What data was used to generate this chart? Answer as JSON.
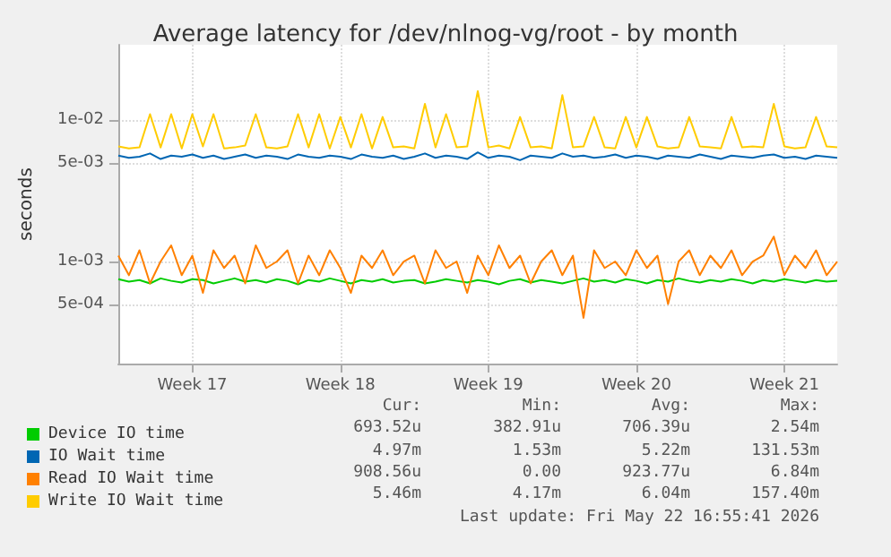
{
  "chart_data": {
    "type": "line",
    "title": "Average latency for /dev/nlnog-vg/root - by month",
    "ylabel": "seconds",
    "log": "y",
    "grid": true,
    "legend": "bottom left",
    "xlim": [
      "2026-04-19T00:00",
      "2026-05-23T00:00"
    ],
    "xticks": [
      {
        "value": "2026-04-22T12:00",
        "label": "Week 17"
      },
      {
        "value": "2026-04-29T12:00",
        "label": "Week 18"
      },
      {
        "value": "2026-05-06T12:00",
        "label": "Week 19"
      },
      {
        "value": "2026-05-13T12:00",
        "label": "Week 20"
      },
      {
        "value": "2026-05-20T12:00",
        "label": "Week 21"
      }
    ],
    "ylim": [
      0.00019,
      0.034
    ],
    "yticks": [
      {
        "value": 0.0005,
        "label": "5e-04"
      },
      {
        "value": 0.001,
        "label": "1e-03"
      },
      {
        "value": 0.005,
        "label": "5e-03"
      },
      {
        "value": 0.01,
        "label": "1e-02"
      }
    ],
    "x": [
      "2026-04-19T00:00",
      "2026-04-19T12:00",
      "2026-04-20T00:00",
      "2026-04-20T12:00",
      "2026-04-21T00:00",
      "2026-04-21T12:00",
      "2026-04-22T00:00",
      "2026-04-22T12:00",
      "2026-04-23T00:00",
      "2026-04-23T12:00",
      "2026-04-24T00:00",
      "2026-04-24T12:00",
      "2026-04-25T00:00",
      "2026-04-25T12:00",
      "2026-04-26T00:00",
      "2026-04-26T12:00",
      "2026-04-27T00:00",
      "2026-04-27T12:00",
      "2026-04-28T00:00",
      "2026-04-28T12:00",
      "2026-04-29T00:00",
      "2026-04-29T12:00",
      "2026-04-30T00:00",
      "2026-04-30T12:00",
      "2026-05-01T00:00",
      "2026-05-01T12:00",
      "2026-05-02T00:00",
      "2026-05-02T12:00",
      "2026-05-03T00:00",
      "2026-05-03T12:00",
      "2026-05-04T00:00",
      "2026-05-04T12:00",
      "2026-05-05T00:00",
      "2026-05-05T12:00",
      "2026-05-06T00:00",
      "2026-05-06T12:00",
      "2026-05-07T00:00",
      "2026-05-07T12:00",
      "2026-05-08T00:00",
      "2026-05-08T12:00",
      "2026-05-09T00:00",
      "2026-05-09T12:00",
      "2026-05-10T00:00",
      "2026-05-10T12:00",
      "2026-05-11T00:00",
      "2026-05-11T12:00",
      "2026-05-12T00:00",
      "2026-05-12T12:00",
      "2026-05-13T00:00",
      "2026-05-13T12:00",
      "2026-05-14T00:00",
      "2026-05-14T12:00",
      "2026-05-15T00:00",
      "2026-05-15T12:00",
      "2026-05-16T00:00",
      "2026-05-16T12:00",
      "2026-05-17T00:00",
      "2026-05-17T12:00",
      "2026-05-18T00:00",
      "2026-05-18T12:00",
      "2026-05-19T00:00",
      "2026-05-19T12:00",
      "2026-05-20T00:00",
      "2026-05-20T12:00",
      "2026-05-21T00:00",
      "2026-05-21T12:00",
      "2026-05-22T00:00",
      "2026-05-22T12:00",
      "2026-05-23T00:00"
    ],
    "series": [
      {
        "name": "Device IO time",
        "color": "#00cc00",
        "values": [
          0.00075,
          0.00072,
          0.00074,
          0.0007,
          0.00076,
          0.00073,
          0.00071,
          0.00075,
          0.00074,
          0.0007,
          0.00073,
          0.00076,
          0.00072,
          0.00074,
          0.00071,
          0.00075,
          0.00073,
          0.00069,
          0.00074,
          0.00072,
          0.00076,
          0.00073,
          0.0007,
          0.00074,
          0.00072,
          0.00075,
          0.00071,
          0.00073,
          0.00074,
          0.0007,
          0.00072,
          0.00075,
          0.00073,
          0.00071,
          0.00074,
          0.00072,
          0.00069,
          0.00073,
          0.00075,
          0.00071,
          0.00074,
          0.00072,
          0.0007,
          0.00073,
          0.00076,
          0.00072,
          0.00074,
          0.00071,
          0.00075,
          0.00073,
          0.0007,
          0.00074,
          0.00072,
          0.00076,
          0.00073,
          0.00071,
          0.00074,
          0.00072,
          0.00075,
          0.00073,
          0.0007,
          0.00074,
          0.00072,
          0.00075,
          0.00073,
          0.00071,
          0.00074,
          0.00072,
          0.00073
        ]
      },
      {
        "name": "IO Wait time",
        "color": "#0066b3",
        "values": [
          0.0056,
          0.0054,
          0.0055,
          0.0058,
          0.0053,
          0.0056,
          0.0055,
          0.0057,
          0.0054,
          0.0056,
          0.0053,
          0.0055,
          0.0057,
          0.0054,
          0.0056,
          0.0055,
          0.0053,
          0.0057,
          0.0055,
          0.0054,
          0.0056,
          0.0055,
          0.0053,
          0.0057,
          0.0055,
          0.0054,
          0.0056,
          0.0053,
          0.0055,
          0.0058,
          0.0054,
          0.0056,
          0.0055,
          0.0053,
          0.0059,
          0.0054,
          0.0056,
          0.0055,
          0.0052,
          0.0056,
          0.0055,
          0.0054,
          0.0058,
          0.0055,
          0.0056,
          0.0054,
          0.0055,
          0.0057,
          0.0054,
          0.0056,
          0.0055,
          0.0053,
          0.0056,
          0.0055,
          0.0054,
          0.0057,
          0.0055,
          0.0053,
          0.0056,
          0.0055,
          0.0054,
          0.0056,
          0.0057,
          0.0054,
          0.0055,
          0.0053,
          0.0056,
          0.0055,
          0.0054
        ]
      },
      {
        "name": "Read IO Wait time",
        "color": "#ff8000",
        "values": [
          0.0011,
          0.0008,
          0.0012,
          0.0007,
          0.001,
          0.0013,
          0.0008,
          0.0011,
          0.0006,
          0.0012,
          0.0009,
          0.0011,
          0.0007,
          0.0013,
          0.0009,
          0.001,
          0.0012,
          0.0007,
          0.0011,
          0.0008,
          0.0012,
          0.0009,
          0.0006,
          0.0011,
          0.0009,
          0.0012,
          0.0008,
          0.001,
          0.0011,
          0.0007,
          0.0012,
          0.0009,
          0.001,
          0.0006,
          0.0011,
          0.0008,
          0.0013,
          0.0009,
          0.0011,
          0.0007,
          0.001,
          0.0012,
          0.0008,
          0.0011,
          0.0004,
          0.0012,
          0.0009,
          0.001,
          0.0008,
          0.0012,
          0.0009,
          0.0011,
          0.0005,
          0.001,
          0.0012,
          0.0008,
          0.0011,
          0.0009,
          0.0012,
          0.0008,
          0.001,
          0.0011,
          0.0015,
          0.0008,
          0.0011,
          0.0009,
          0.0012,
          0.0008,
          0.001
        ]
      },
      {
        "name": "Write IO Wait time",
        "color": "#ffcc00",
        "values": [
          0.0065,
          0.0063,
          0.0064,
          0.011,
          0.0064,
          0.011,
          0.0063,
          0.011,
          0.0065,
          0.011,
          0.0063,
          0.0064,
          0.0066,
          0.011,
          0.0064,
          0.0063,
          0.0065,
          0.011,
          0.0064,
          0.011,
          0.0063,
          0.0105,
          0.0064,
          0.011,
          0.0063,
          0.0105,
          0.0064,
          0.0065,
          0.0063,
          0.013,
          0.0064,
          0.011,
          0.0064,
          0.0065,
          0.016,
          0.0064,
          0.0066,
          0.0063,
          0.0105,
          0.0064,
          0.0065,
          0.0063,
          0.015,
          0.0064,
          0.0065,
          0.0105,
          0.0064,
          0.0063,
          0.0105,
          0.0064,
          0.0105,
          0.0065,
          0.0063,
          0.0064,
          0.0105,
          0.0065,
          0.0064,
          0.0063,
          0.0105,
          0.0064,
          0.0065,
          0.0064,
          0.013,
          0.0065,
          0.0063,
          0.0064,
          0.0105,
          0.0065,
          0.0064
        ]
      }
    ],
    "annotations": [
      "Cur:",
      "Min:",
      "Avg:",
      "Max:",
      "693.52u",
      "382.91u",
      "706.39u",
      "2.54m",
      "4.97m",
      "1.53m",
      "5.22m",
      "131.53m",
      "908.56u",
      "0.00",
      "923.77u",
      "6.84m",
      "5.46m",
      "4.17m",
      "6.04m",
      "157.40m",
      "Last update: Fri May 22 16:55:41 2026"
    ]
  }
}
